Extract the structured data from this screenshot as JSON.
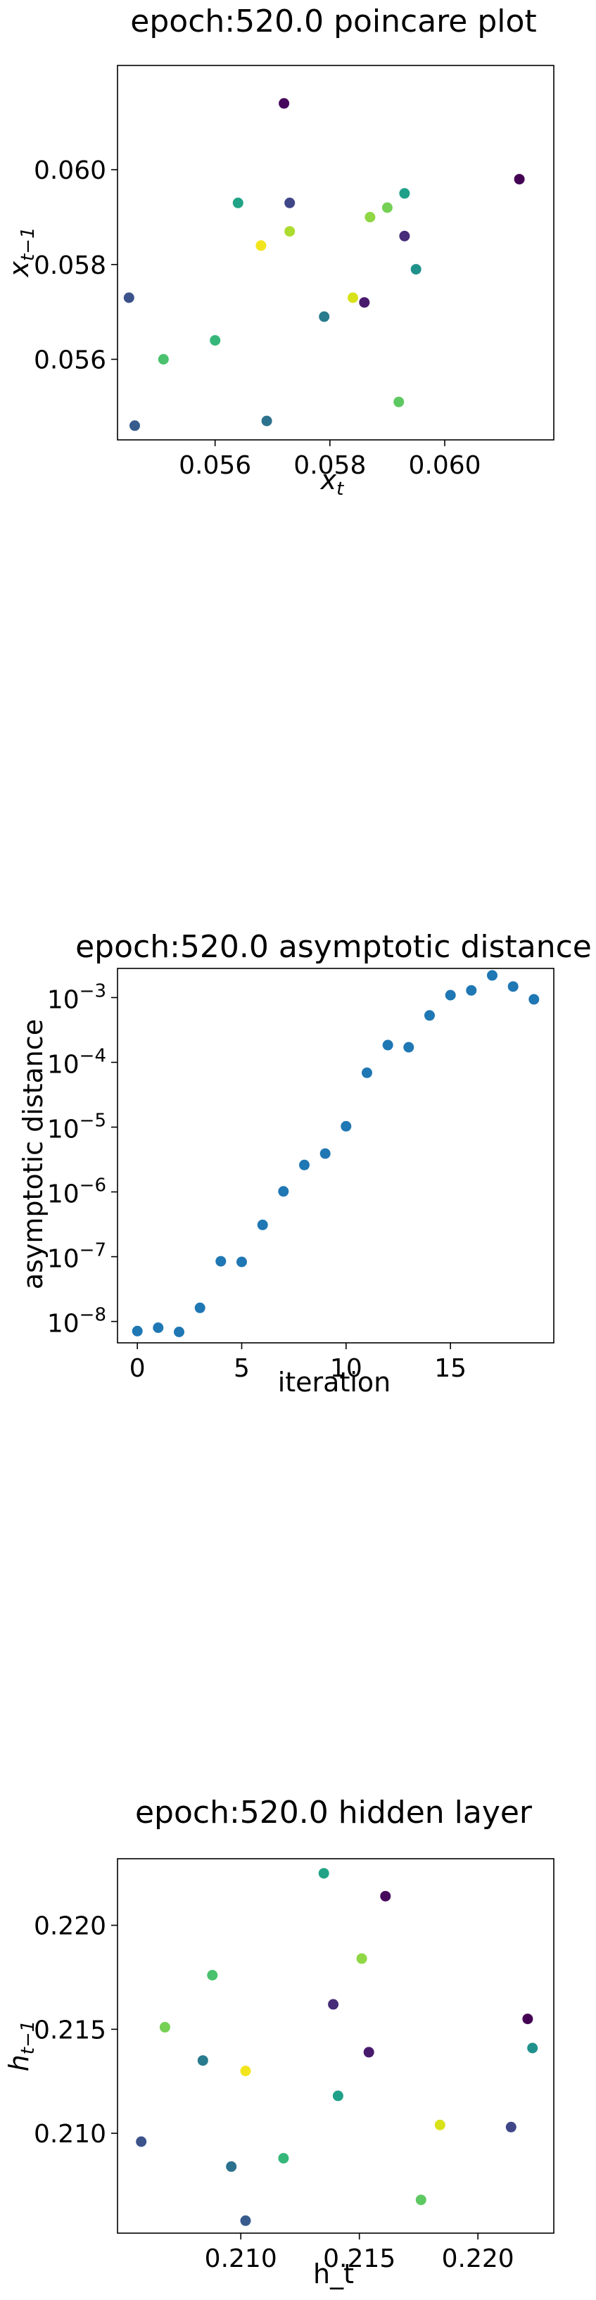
{
  "chart_data": [
    {
      "type": "scatter",
      "title": "epoch:520.0 poincare plot",
      "xlabel": "x_t",
      "ylabel": "x_{t-1}",
      "xlim": [
        0.0543,
        0.0619
      ],
      "ylim": [
        0.0543,
        0.0622
      ],
      "xticks": [
        0.056,
        0.058,
        0.06
      ],
      "yticks": [
        0.056,
        0.058,
        0.06
      ],
      "tick_labels": {
        "x": [
          "0.056",
          "0.058",
          "0.060"
        ],
        "y": [
          "0.056",
          "0.058",
          "0.060"
        ]
      },
      "points": [
        {
          "x": 0.0613,
          "y": 0.0598,
          "color": "#440154"
        },
        {
          "x": 0.0572,
          "y": 0.0614,
          "color": "#46085c"
        },
        {
          "x": 0.0586,
          "y": 0.0572,
          "color": "#481a6c"
        },
        {
          "x": 0.0593,
          "y": 0.0586,
          "color": "#472c7a"
        },
        {
          "x": 0.0573,
          "y": 0.0593,
          "color": "#3f4788"
        },
        {
          "x": 0.0545,
          "y": 0.0573,
          "color": "#3b528b"
        },
        {
          "x": 0.0546,
          "y": 0.0546,
          "color": "#375b8d"
        },
        {
          "x": 0.0569,
          "y": 0.0547,
          "color": "#2c728e"
        },
        {
          "x": 0.0579,
          "y": 0.0569,
          "color": "#297b8e"
        },
        {
          "x": 0.0595,
          "y": 0.0579,
          "color": "#21918c"
        },
        {
          "x": 0.0564,
          "y": 0.0593,
          "color": "#20a386"
        },
        {
          "x": 0.0593,
          "y": 0.0595,
          "color": "#1fa088"
        },
        {
          "x": 0.056,
          "y": 0.0564,
          "color": "#35b779"
        },
        {
          "x": 0.0551,
          "y": 0.056,
          "color": "#4ac16d"
        },
        {
          "x": 0.0592,
          "y": 0.0551,
          "color": "#5ec962"
        },
        {
          "x": 0.059,
          "y": 0.0592,
          "color": "#75d054"
        },
        {
          "x": 0.0587,
          "y": 0.059,
          "color": "#8fd744"
        },
        {
          "x": 0.0573,
          "y": 0.0587,
          "color": "#addc30"
        },
        {
          "x": 0.0584,
          "y": 0.0573,
          "color": "#d8e219"
        },
        {
          "x": 0.0568,
          "y": 0.0584,
          "color": "#f2e51d"
        }
      ]
    },
    {
      "type": "scatter",
      "title": "epoch:520.0 asymptotic distance",
      "xlabel": "iteration",
      "ylabel": "asymptotic distance",
      "yscale": "log",
      "xlim": [
        -0.95,
        19.95
      ],
      "ylim_log10": [
        -8.33,
        -2.55
      ],
      "xticks": [
        0,
        5,
        10,
        15
      ],
      "yticks_log10": [
        -8,
        -7,
        -6,
        -5,
        -4,
        -3
      ],
      "tick_labels": {
        "x": [
          "0",
          "5",
          "10",
          "15"
        ],
        "y_base": "10",
        "y_exponents": [
          "−8",
          "−7",
          "−6",
          "−5",
          "−4",
          "−3"
        ]
      },
      "marker_color": "#1f77b4",
      "x": [
        0,
        1,
        2,
        3,
        4,
        5,
        6,
        7,
        8,
        9,
        10,
        11,
        12,
        13,
        14,
        15,
        16,
        17,
        18,
        19
      ],
      "y": [
        7.1e-09,
        8e-09,
        6.9e-09,
        1.62e-08,
        8.5e-08,
        8.3e-08,
        3.1e-07,
        1.02e-06,
        2.6e-06,
        3.9e-06,
        1.03e-05,
        6.9e-05,
        0.000185,
        0.000171,
        0.00053,
        0.00109,
        0.00129,
        0.0022,
        0.00148,
        0.00094
      ]
    },
    {
      "type": "scatter",
      "title": "epoch:520.0 hidden layer",
      "xlabel": "h_t",
      "ylabel": "h_{t-1}",
      "xlim": [
        0.2048,
        0.2232
      ],
      "ylim": [
        0.2052,
        0.2232
      ],
      "xticks": [
        0.21,
        0.215,
        0.22
      ],
      "yticks": [
        0.21,
        0.215,
        0.22
      ],
      "tick_labels": {
        "x": [
          "0.210",
          "0.215",
          "0.220"
        ],
        "y": [
          "0.210",
          "0.215",
          "0.220"
        ]
      },
      "points": [
        {
          "x": 0.2221,
          "y": 0.2155,
          "color": "#440154"
        },
        {
          "x": 0.2161,
          "y": 0.2214,
          "color": "#46085c"
        },
        {
          "x": 0.2154,
          "y": 0.2139,
          "color": "#481a6c"
        },
        {
          "x": 0.2139,
          "y": 0.2162,
          "color": "#472c7a"
        },
        {
          "x": 0.2214,
          "y": 0.2103,
          "color": "#3f4788"
        },
        {
          "x": 0.2058,
          "y": 0.2096,
          "color": "#3b528b"
        },
        {
          "x": 0.2102,
          "y": 0.2058,
          "color": "#375b8d"
        },
        {
          "x": 0.2096,
          "y": 0.2084,
          "color": "#2c728e"
        },
        {
          "x": 0.2084,
          "y": 0.2135,
          "color": "#297b8e"
        },
        {
          "x": 0.2223,
          "y": 0.2141,
          "color": "#21918c"
        },
        {
          "x": 0.2135,
          "y": 0.2225,
          "color": "#20a386"
        },
        {
          "x": 0.2141,
          "y": 0.2118,
          "color": "#1fa088"
        },
        {
          "x": 0.2118,
          "y": 0.2088,
          "color": "#35b779"
        },
        {
          "x": 0.2088,
          "y": 0.2176,
          "color": "#4ac16d"
        },
        {
          "x": 0.2176,
          "y": 0.2068,
          "color": "#5ec962"
        },
        {
          "x": 0.2068,
          "y": 0.2151,
          "color": "#75d054"
        },
        {
          "x": 0.2151,
          "y": 0.2184,
          "color": "#8fd744"
        },
        {
          "x": 0.2184,
          "y": 0.2104,
          "color": "#d8e219"
        },
        {
          "x": 0.2102,
          "y": 0.213,
          "color": "#f2e51d"
        }
      ]
    }
  ]
}
